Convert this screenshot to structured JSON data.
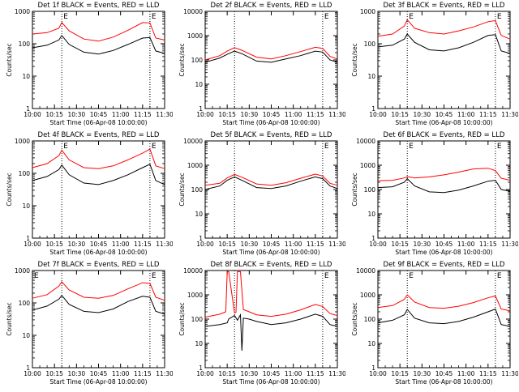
{
  "chart_data": [
    {
      "type": "line",
      "title": "Det 1f BLACK = Events, RED = LLD",
      "xlabel": "Start Time (06-Apr-08 10:00:00)",
      "ylabel": "Counts/sec",
      "xticks": [
        "10:00",
        "10:15",
        "10:30",
        "10:45",
        "11:00",
        "11:15",
        "11:30"
      ],
      "yticks": [
        "1",
        "10",
        "100",
        "1000"
      ],
      "ylog": true,
      "ylim": [
        1,
        1000
      ],
      "xlim_min": [
        0,
        90
      ],
      "markers": [
        {
          "label": "E",
          "x": 20
        },
        {
          "label": "E",
          "x": 80
        }
      ],
      "vlines": [
        20,
        80,
        80
      ],
      "series": [
        {
          "name": "BLACK = Events",
          "color": "#000000",
          "x": [
            0,
            10,
            18,
            20,
            25,
            35,
            45,
            55,
            65,
            75,
            80,
            84,
            90
          ],
          "y": [
            75,
            90,
            130,
            180,
            95,
            55,
            48,
            62,
            95,
            150,
            155,
            60,
            50
          ]
        },
        {
          "name": "RED = LLD",
          "color": "#ff0000",
          "x": [
            0,
            10,
            18,
            20,
            25,
            35,
            45,
            55,
            65,
            75,
            80,
            84,
            90
          ],
          "y": [
            200,
            220,
            300,
            450,
            250,
            140,
            120,
            160,
            260,
            450,
            440,
            150,
            130
          ]
        }
      ]
    },
    {
      "type": "line",
      "title": "Det 2f BLACK = Events, RED = LLD",
      "xlabel": "Start Time (06-Apr-08 10:00:00)",
      "ylabel": "Counts/sec",
      "xticks": [
        "10:00",
        "10:15",
        "10:30",
        "10:45",
        "11:00",
        "11:15",
        "11:30"
      ],
      "yticks": [
        "1",
        "10",
        "100",
        "1000",
        "10000"
      ],
      "ylog": true,
      "ylim": [
        1,
        10000
      ],
      "xlim_min": [
        0,
        90
      ],
      "markers": [
        {
          "label": "E",
          "x": 80
        }
      ],
      "vlines": [
        20,
        80,
        90
      ],
      "series": [
        {
          "name": "BLACK = Events",
          "color": "#000000",
          "x": [
            0,
            10,
            15,
            20,
            25,
            35,
            45,
            55,
            65,
            75,
            80,
            85,
            90
          ],
          "y": [
            80,
            120,
            170,
            230,
            180,
            90,
            80,
            110,
            150,
            230,
            210,
            100,
            80
          ]
        },
        {
          "name": "RED = LLD",
          "color": "#ff0000",
          "x": [
            0,
            10,
            15,
            20,
            25,
            35,
            45,
            55,
            65,
            75,
            80,
            85,
            90
          ],
          "y": [
            100,
            150,
            230,
            320,
            250,
            130,
            110,
            150,
            220,
            330,
            300,
            140,
            110
          ]
        }
      ]
    },
    {
      "type": "line",
      "title": "Det 3f BLACK = Events, RED = LLD",
      "xlabel": "Start Time (06-Apr-08 10:00:00)",
      "ylabel": "Counts/sec",
      "xticks": [
        "10:00",
        "10:15",
        "10:30",
        "10:45",
        "11:00",
        "11:15",
        "11:30"
      ],
      "yticks": [
        "1",
        "10",
        "100",
        "1000"
      ],
      "ylog": true,
      "ylim": [
        1,
        1000
      ],
      "xlim_min": [
        0,
        90
      ],
      "markers": [
        {
          "label": "E",
          "x": 20
        },
        {
          "label": "E",
          "x": 80
        }
      ],
      "vlines": [
        20,
        80
      ],
      "series": [
        {
          "name": "BLACK = Events",
          "color": "#000000",
          "x": [
            0,
            10,
            18,
            20,
            25,
            35,
            45,
            55,
            65,
            75,
            80,
            84,
            90
          ],
          "y": [
            80,
            90,
            140,
            200,
            110,
            65,
            60,
            75,
            110,
            180,
            190,
            60,
            50
          ]
        },
        {
          "name": "RED = LLD",
          "color": "#ff0000",
          "x": [
            0,
            10,
            18,
            20,
            25,
            35,
            45,
            55,
            65,
            75,
            80,
            84,
            90
          ],
          "y": [
            170,
            200,
            350,
            550,
            300,
            220,
            200,
            250,
            330,
            480,
            520,
            180,
            140
          ]
        }
      ]
    },
    {
      "type": "line",
      "title": "Det 4f BLACK = Events, RED = LLD",
      "xlabel": "Start Time (06-Apr-08 10:00:00)",
      "ylabel": "Counts/sec",
      "xticks": [
        "10:00",
        "10:15",
        "10:30",
        "10:45",
        "11:00",
        "11:15",
        "11:30"
      ],
      "yticks": [
        "1",
        "10",
        "100",
        "1000"
      ],
      "ylog": true,
      "ylim": [
        1,
        1000
      ],
      "xlim_min": [
        0,
        90
      ],
      "markers": [
        {
          "label": "E",
          "x": 20
        },
        {
          "label": "E",
          "x": 80
        }
      ],
      "vlines": [
        20,
        80
      ],
      "series": [
        {
          "name": "BLACK = Events",
          "color": "#000000",
          "x": [
            0,
            10,
            18,
            20,
            25,
            35,
            45,
            55,
            65,
            75,
            80,
            84,
            90
          ],
          "y": [
            60,
            80,
            130,
            180,
            90,
            50,
            45,
            60,
            90,
            150,
            190,
            60,
            45
          ]
        },
        {
          "name": "RED = LLD",
          "color": "#ff0000",
          "x": [
            0,
            10,
            18,
            20,
            25,
            35,
            45,
            55,
            65,
            75,
            80,
            84,
            90
          ],
          "y": [
            150,
            200,
            350,
            520,
            260,
            150,
            140,
            170,
            260,
            420,
            560,
            170,
            140
          ]
        }
      ]
    },
    {
      "type": "line",
      "title": "Det 5f BLACK = Events, RED = LLD",
      "xlabel": "Start Time (06-Apr-08 10:00:00)",
      "ylabel": "Counts/sec",
      "xticks": [
        "10:00",
        "10:15",
        "10:30",
        "10:45",
        "11:00",
        "11:15",
        "11:30"
      ],
      "yticks": [
        "1",
        "10",
        "100",
        "1000",
        "10000"
      ],
      "ylog": true,
      "ylim": [
        1,
        10000
      ],
      "xlim_min": [
        0,
        90
      ],
      "markers": [
        {
          "label": "E",
          "x": 80
        }
      ],
      "vlines": [
        20,
        80,
        90
      ],
      "series": [
        {
          "name": "BLACK = Events",
          "color": "#000000",
          "x": [
            0,
            10,
            15,
            20,
            25,
            35,
            45,
            55,
            65,
            75,
            80,
            85,
            90
          ],
          "y": [
            100,
            140,
            240,
            330,
            240,
            120,
            110,
            140,
            220,
            330,
            280,
            140,
            110
          ]
        },
        {
          "name": "RED = LLD",
          "color": "#ff0000",
          "x": [
            0,
            10,
            15,
            20,
            25,
            35,
            45,
            55,
            65,
            75,
            80,
            85,
            90
          ],
          "y": [
            150,
            180,
            300,
            420,
            320,
            170,
            150,
            190,
            290,
            430,
            360,
            180,
            150
          ]
        }
      ]
    },
    {
      "type": "line",
      "title": "Det 6f BLACK = Events, RED = LLD",
      "xlabel": "Start Time (06-Apr-08 10:00:00)",
      "ylabel": "Counts/sec",
      "xticks": [
        "10:00",
        "10:15",
        "10:30",
        "10:45",
        "11:00",
        "11:15",
        "11:30"
      ],
      "yticks": [
        "1",
        "10",
        "100",
        "1000",
        "10000"
      ],
      "ylog": true,
      "ylim": [
        1,
        10000
      ],
      "xlim_min": [
        0,
        90
      ],
      "markers": [
        {
          "label": "E",
          "x": 20
        },
        {
          "label": "E",
          "x": 80
        }
      ],
      "vlines": [
        20,
        80
      ],
      "series": [
        {
          "name": "BLACK = Events",
          "color": "#000000",
          "x": [
            0,
            10,
            18,
            20,
            25,
            35,
            45,
            55,
            65,
            75,
            80,
            84,
            90
          ],
          "y": [
            120,
            130,
            200,
            280,
            140,
            80,
            75,
            95,
            140,
            220,
            240,
            100,
            85
          ]
        },
        {
          "name": "RED = LLD",
          "color": "#ff0000",
          "x": [
            0,
            10,
            18,
            20,
            25,
            35,
            45,
            55,
            65,
            75,
            80,
            84,
            90
          ],
          "y": [
            230,
            240,
            300,
            340,
            300,
            330,
            400,
            520,
            700,
            750,
            600,
            290,
            240
          ]
        }
      ]
    },
    {
      "type": "line",
      "title": "Det 7f BLACK = Events, RED = LLD",
      "xlabel": "Start Time (06-Apr-08 10:00:00)",
      "ylabel": "Counts/sec",
      "xticks": [
        "10:00",
        "10:15",
        "10:30",
        "10:45",
        "11:00",
        "11:15",
        "11:30"
      ],
      "yticks": [
        "1",
        "10",
        "100",
        "1000"
      ],
      "ylog": true,
      "ylim": [
        1,
        1000
      ],
      "xlim_min": [
        0,
        90
      ],
      "markers": [
        {
          "label": "E",
          "x": 0
        },
        {
          "label": "E",
          "x": 80
        }
      ],
      "vlines": [
        20,
        80
      ],
      "series": [
        {
          "name": "BLACK = Events",
          "color": "#000000",
          "x": [
            0,
            10,
            18,
            20,
            25,
            35,
            45,
            55,
            65,
            75,
            80,
            84,
            90
          ],
          "y": [
            60,
            80,
            130,
            170,
            90,
            55,
            50,
            65,
            110,
            160,
            150,
            55,
            45
          ]
        },
        {
          "name": "RED = LLD",
          "color": "#ff0000",
          "x": [
            0,
            10,
            18,
            20,
            25,
            35,
            45,
            55,
            65,
            75,
            80,
            84,
            90
          ],
          "y": [
            140,
            180,
            330,
            450,
            250,
            150,
            140,
            170,
            270,
            420,
            400,
            150,
            120
          ]
        }
      ]
    },
    {
      "type": "line",
      "title": "Det 8f BLACK = Events, RED = LLD",
      "xlabel": "Start Time (06-Apr-08 10:00:00)",
      "ylabel": "Counts/sec",
      "xticks": [
        "10:00",
        "10:15",
        "10:30",
        "10:45",
        "11:00",
        "11:15",
        "11:30"
      ],
      "yticks": [
        "1",
        "10",
        "100",
        "1000",
        "10000"
      ],
      "ylog": true,
      "ylim": [
        1,
        10000
      ],
      "xlim_min": [
        0,
        90
      ],
      "markers": [
        {
          "label": "E",
          "x": 80
        }
      ],
      "vlines": [
        20,
        80,
        90
      ],
      "series": [
        {
          "name": "BLACK = Events",
          "color": "#000000",
          "x": [
            0,
            10,
            15,
            16,
            20,
            22,
            24,
            25,
            26,
            30,
            35,
            45,
            55,
            65,
            75,
            80,
            85,
            90
          ],
          "y": [
            50,
            60,
            70,
            100,
            140,
            90,
            150,
            5,
            110,
            100,
            80,
            60,
            70,
            100,
            160,
            130,
            60,
            50
          ]
        },
        {
          "name": "RED = LLD",
          "color": "#ff0000",
          "x": [
            0,
            10,
            14,
            15,
            16,
            20,
            21,
            22,
            23,
            24,
            26,
            30,
            35,
            45,
            55,
            65,
            75,
            80,
            85,
            90
          ],
          "y": [
            120,
            160,
            200,
            9000,
            9000,
            180,
            190,
            9000,
            9000,
            9000,
            250,
            200,
            150,
            130,
            160,
            240,
            400,
            330,
            170,
            140
          ]
        }
      ]
    },
    {
      "type": "line",
      "title": "Det 9f BLACK = Events, RED = LLD",
      "xlabel": "Start Time (06-Apr-08 10:00:00)",
      "ylabel": "Counts/sec",
      "xticks": [
        "10:00",
        "10:15",
        "10:30",
        "10:45",
        "11:00",
        "11:15",
        "11:30"
      ],
      "yticks": [
        "1",
        "10",
        "100",
        "1000",
        "10000"
      ],
      "ylog": true,
      "ylim": [
        1,
        10000
      ],
      "xlim_min": [
        0,
        90
      ],
      "markers": [
        {
          "label": "E",
          "x": 20
        },
        {
          "label": "E",
          "x": 80
        }
      ],
      "vlines": [
        20,
        80
      ],
      "series": [
        {
          "name": "BLACK = Events",
          "color": "#000000",
          "x": [
            0,
            10,
            18,
            20,
            25,
            35,
            45,
            55,
            65,
            75,
            80,
            84,
            90
          ],
          "y": [
            70,
            90,
            150,
            250,
            110,
            70,
            65,
            80,
            120,
            200,
            260,
            60,
            50
          ]
        },
        {
          "name": "RED = LLD",
          "color": "#ff0000",
          "x": [
            0,
            10,
            18,
            20,
            25,
            35,
            45,
            55,
            65,
            75,
            80,
            84,
            90
          ],
          "y": [
            300,
            360,
            650,
            1000,
            500,
            300,
            280,
            340,
            480,
            750,
            900,
            260,
            220
          ]
        }
      ]
    }
  ]
}
